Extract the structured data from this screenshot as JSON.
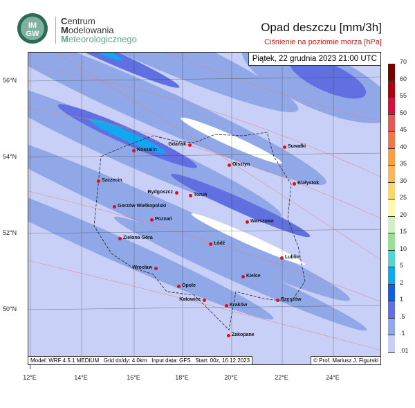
{
  "header": {
    "logo_text": "IMGW",
    "org": [
      {
        "first": "C",
        "rest": "entrum"
      },
      {
        "first": "M",
        "rest": "odelowania"
      },
      {
        "first": "M",
        "rest": "eteorologicznego"
      }
    ],
    "title": "Opad deszczu [mm/3h]",
    "subtitle": "Ciśnienie na poziomie morza [hPa]",
    "date": "Piątek, 22 grudnia 2023 21:00 UTC"
  },
  "footer": {
    "model_info": "Model: WRF 4.5.1 MEDIUM   Grid dx/dy: 4.0km   Input data: GFS   Start: 00z, 16.12.2023",
    "copyright": "© Prof. Mariusz J. Figurski"
  },
  "axes": {
    "longitudes": [
      "12°E",
      "14°E",
      "16°E",
      "18°E",
      "20°E",
      "22°E",
      "24°E"
    ],
    "latitudes": [
      "56°N",
      "54°N",
      "52°N",
      "50°N"
    ]
  },
  "legend": {
    "labels": [
      "70",
      "60",
      "55",
      "50",
      "45",
      "40",
      "35",
      "30",
      "25",
      "20",
      "15",
      "10",
      "5",
      "2",
      "1",
      ".5",
      ".1",
      ".01"
    ],
    "colors": [
      "#7a0000",
      "#b00010",
      "#d8103c",
      "#e85858",
      "#f07848",
      "#f8a040",
      "#f8b858",
      "#f8d868",
      "#fff8b0",
      "#d0f0c8",
      "#98e098",
      "#50d8d0",
      "#10a8f0",
      "#1060e0",
      "#6070e0",
      "#90a8e8",
      "#c8d0f8"
    ]
  },
  "cities": [
    {
      "name": "Koszalin"
    },
    {
      "name": "Gdańsk"
    },
    {
      "name": "Olsztyn"
    },
    {
      "name": "Suwałki"
    },
    {
      "name": "Szczecin"
    },
    {
      "name": "Bydgoszcz"
    },
    {
      "name": "Toruń"
    },
    {
      "name": "Białystok"
    },
    {
      "name": "Gorzów Wielkopolski"
    },
    {
      "name": "Poznań"
    },
    {
      "name": "Warszawa"
    },
    {
      "name": "Zielona Góra"
    },
    {
      "name": "Łódź"
    },
    {
      "name": "Lublin"
    },
    {
      "name": "Wrocław"
    },
    {
      "name": "Kielce"
    },
    {
      "name": "Opole"
    },
    {
      "name": "Katowice"
    },
    {
      "name": "Kraków"
    },
    {
      "name": "Rzeszów"
    },
    {
      "name": "Zakopane"
    }
  ]
}
